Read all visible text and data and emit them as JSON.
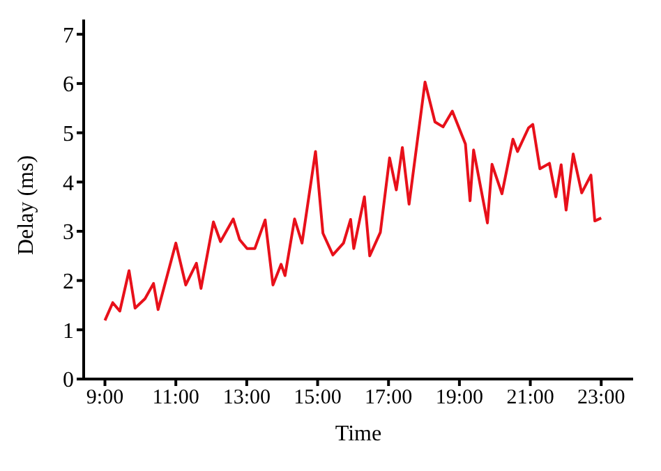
{
  "chart_data": {
    "type": "line",
    "xlabel": "Time",
    "ylabel": "Delay (ms)",
    "x": [
      9.0,
      9.22,
      9.42,
      9.68,
      9.85,
      10.13,
      10.37,
      10.5,
      11.0,
      11.28,
      11.58,
      11.71,
      12.06,
      12.26,
      12.62,
      12.8,
      13.01,
      13.23,
      13.52,
      13.74,
      13.97,
      14.08,
      14.35,
      14.56,
      14.94,
      15.15,
      15.43,
      15.73,
      15.93,
      16.02,
      16.32,
      16.47,
      16.77,
      17.03,
      17.22,
      17.39,
      17.58,
      18.03,
      18.31,
      18.54,
      18.8,
      19.17,
      19.3,
      19.4,
      19.79,
      19.92,
      20.2,
      20.51,
      20.64,
      20.95,
      21.07,
      21.27,
      21.54,
      21.72,
      21.87,
      22.01,
      22.21,
      22.45,
      22.71,
      22.82,
      23.0
    ],
    "series": [
      {
        "color": "#e8101a",
        "values": [
          1.19,
          1.55,
          1.38,
          2.2,
          1.44,
          1.63,
          1.94,
          1.41,
          2.76,
          1.91,
          2.35,
          1.84,
          3.19,
          2.79,
          3.25,
          2.83,
          2.65,
          2.65,
          3.23,
          1.91,
          2.33,
          2.1,
          3.25,
          2.76,
          4.62,
          2.96,
          2.52,
          2.76,
          3.24,
          2.65,
          3.7,
          2.5,
          2.98,
          4.49,
          3.84,
          4.7,
          3.55,
          6.03,
          5.22,
          5.12,
          5.44,
          4.77,
          3.62,
          4.65,
          3.17,
          4.36,
          3.76,
          4.87,
          4.62,
          5.1,
          5.17,
          4.27,
          4.38,
          3.7,
          4.35,
          3.43,
          4.57,
          3.78,
          4.14,
          3.21,
          3.27
        ]
      }
    ],
    "xlim": [
      8.4,
      23.9
    ],
    "xticks": [
      {
        "value": 9,
        "label": "9:00"
      },
      {
        "value": 11,
        "label": "11:00"
      },
      {
        "value": 13,
        "label": "13:00"
      },
      {
        "value": 15,
        "label": "15:00"
      },
      {
        "value": 17,
        "label": "17:00"
      },
      {
        "value": 19,
        "label": "19:00"
      },
      {
        "value": 21,
        "label": "21:00"
      },
      {
        "value": 23,
        "label": "23:00"
      }
    ],
    "ylim": [
      0,
      7.3
    ],
    "yticks": [
      0,
      1,
      2,
      3,
      4,
      5,
      6,
      7
    ],
    "grid": false,
    "legend": false,
    "marker": "none",
    "line_style": "solid"
  }
}
